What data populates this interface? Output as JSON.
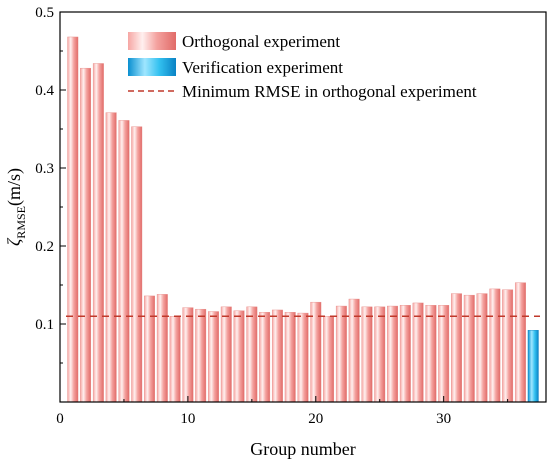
{
  "chart_data": {
    "type": "bar",
    "title": "",
    "xlabel": "Group number",
    "ylabel_symbol": "ζ",
    "ylabel_subscript": "RMSE",
    "ylabel_unit": "(m/s)",
    "xlim": [
      0,
      38
    ],
    "ylim": [
      0,
      0.5
    ],
    "xticks": [
      0,
      10,
      20,
      30
    ],
    "yticks": [
      0.1,
      0.2,
      0.3,
      0.4,
      0.5
    ],
    "x_tick_labels": [
      "0",
      "10",
      "20",
      "30"
    ],
    "y_tick_labels": [
      "0.1",
      "0.2",
      "0.3",
      "0.4",
      "0.5"
    ],
    "grid": false,
    "legend_position": "top-right",
    "series": [
      {
        "name": "Orthogonal experiment",
        "color": "#f08080",
        "x": [
          1,
          2,
          3,
          4,
          5,
          6,
          7,
          8,
          9,
          10,
          11,
          12,
          13,
          14,
          15,
          16,
          17,
          18,
          19,
          20,
          21,
          22,
          23,
          24,
          25,
          26,
          27,
          28,
          29,
          30,
          31,
          32,
          33,
          34,
          35,
          36
        ],
        "values": [
          0.468,
          0.428,
          0.434,
          0.371,
          0.361,
          0.353,
          0.136,
          0.138,
          0.11,
          0.121,
          0.119,
          0.116,
          0.122,
          0.117,
          0.122,
          0.115,
          0.118,
          0.115,
          0.114,
          0.128,
          0.11,
          0.123,
          0.132,
          0.122,
          0.122,
          0.123,
          0.124,
          0.127,
          0.124,
          0.124,
          0.139,
          0.137,
          0.139,
          0.145,
          0.144,
          0.153
        ]
      },
      {
        "name": "Verification experiment",
        "color": "#1eb4e8",
        "x": [
          37
        ],
        "values": [
          0.092
        ]
      }
    ],
    "reference_line": {
      "name": "Minimum RMSE in orthogonal experiment",
      "value": 0.11,
      "color": "#c0392b",
      "style": "dashed"
    }
  }
}
